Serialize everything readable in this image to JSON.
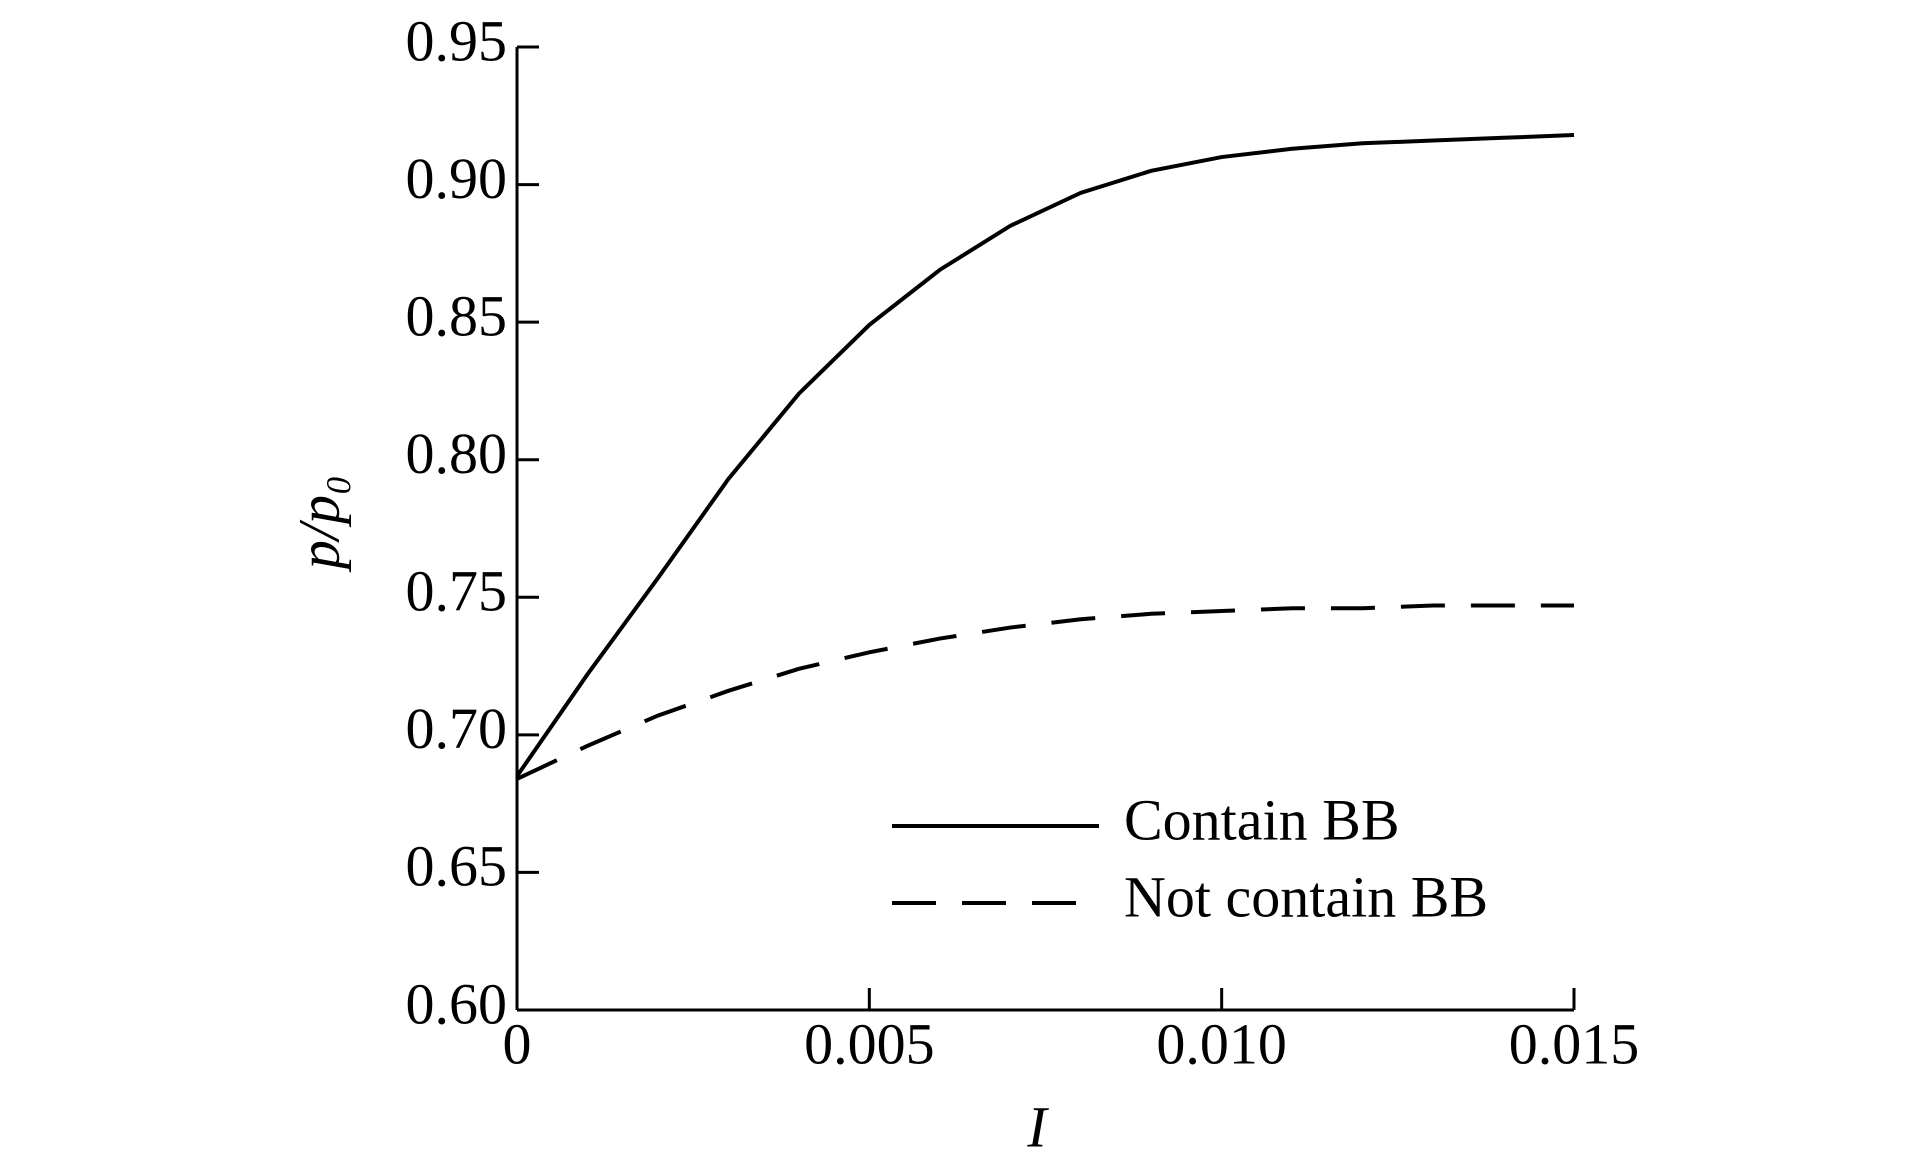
{
  "chart_data": {
    "type": "line",
    "xlabel": "I",
    "ylabel": "p/p₀",
    "x": [
      0,
      0.001,
      0.002,
      0.003,
      0.004,
      0.005,
      0.006,
      0.007,
      0.008,
      0.009,
      0.01,
      0.011,
      0.012,
      0.013,
      0.014,
      0.015
    ],
    "series": [
      {
        "name": "Contain BB",
        "color": "#000000",
        "dash": "solid",
        "values": [
          0.685,
          0.722,
          0.757,
          0.793,
          0.824,
          0.849,
          0.869,
          0.885,
          0.897,
          0.905,
          0.91,
          0.913,
          0.915,
          0.916,
          0.917,
          0.918
        ]
      },
      {
        "name": "Not contain BB",
        "color": "#000000",
        "dash": "dashed",
        "values": [
          0.684,
          0.696,
          0.707,
          0.716,
          0.724,
          0.73,
          0.735,
          0.739,
          0.742,
          0.744,
          0.745,
          0.746,
          0.746,
          0.747,
          0.747,
          0.747
        ]
      }
    ],
    "xlim": [
      0,
      0.015
    ],
    "xticks": [
      0,
      0.005,
      {
        "value": 0.01,
        "label": "0.010"
      },
      0.015
    ],
    "ylim": [
      0.6,
      0.95
    ],
    "yticks": [
      {
        "value": 0.6,
        "label": "0.60"
      },
      0.65,
      {
        "value": 0.7,
        "label": "0.70"
      },
      0.75,
      {
        "value": 0.8,
        "label": "0.80"
      },
      0.85,
      {
        "value": 0.9,
        "label": "0.90"
      },
      0.95
    ],
    "grid": false,
    "legend": "lower right"
  }
}
